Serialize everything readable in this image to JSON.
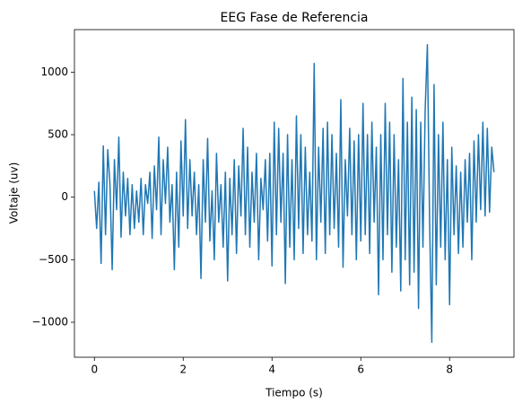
{
  "chart_data": {
    "type": "line",
    "title": "EEG Fase de Referencia",
    "x_label": "Tiempo (s)",
    "y_label": "Voltaje (uv)",
    "color": "#1f77b4",
    "x": [
      0,
      0.05,
      0.1,
      0.15,
      0.2,
      0.25,
      0.3,
      0.35,
      0.4,
      0.45,
      0.5,
      0.55,
      0.6,
      0.65,
      0.7,
      0.75,
      0.8,
      0.85,
      0.9,
      0.95,
      1,
      1.05,
      1.1,
      1.15,
      1.2,
      1.25,
      1.3,
      1.35,
      1.4,
      1.45,
      1.5,
      1.55,
      1.6,
      1.65,
      1.7,
      1.75,
      1.8,
      1.85,
      1.9,
      1.95,
      2,
      2.05,
      2.1,
      2.15,
      2.2,
      2.25,
      2.3,
      2.35,
      2.4,
      2.45,
      2.5,
      2.55,
      2.6,
      2.65,
      2.7,
      2.75,
      2.8,
      2.85,
      2.9,
      2.95,
      3,
      3.05,
      3.1,
      3.15,
      3.2,
      3.25,
      3.3,
      3.35,
      3.4,
      3.45,
      3.5,
      3.55,
      3.6,
      3.65,
      3.7,
      3.75,
      3.8,
      3.85,
      3.9,
      3.95,
      4,
      4.05,
      4.1,
      4.15,
      4.2,
      4.25,
      4.3,
      4.35,
      4.4,
      4.45,
      4.5,
      4.55,
      4.6,
      4.65,
      4.7,
      4.75,
      4.8,
      4.85,
      4.9,
      4.95,
      5,
      5.05,
      5.1,
      5.15,
      5.2,
      5.25,
      5.3,
      5.35,
      5.4,
      5.45,
      5.5,
      5.55,
      5.6,
      5.65,
      5.7,
      5.75,
      5.8,
      5.85,
      5.9,
      5.95,
      6,
      6.05,
      6.1,
      6.15,
      6.2,
      6.25,
      6.3,
      6.35,
      6.4,
      6.45,
      6.5,
      6.55,
      6.6,
      6.65,
      6.7,
      6.75,
      6.8,
      6.85,
      6.9,
      6.95,
      7,
      7.05,
      7.1,
      7.15,
      7.2,
      7.25,
      7.3,
      7.35,
      7.4,
      7.45,
      7.5,
      7.55,
      7.6,
      7.65,
      7.7,
      7.75,
      7.8,
      7.85,
      7.9,
      7.95,
      8,
      8.05,
      8.1,
      8.15,
      8.2,
      8.25,
      8.3,
      8.35,
      8.4,
      8.45,
      8.5,
      8.55,
      8.6,
      8.65,
      8.7,
      8.75,
      8.8,
      8.85,
      8.9,
      8.95,
      9
    ],
    "values": [
      50,
      -250,
      120,
      -530,
      410,
      -300,
      380,
      100,
      -580,
      300,
      -100,
      480,
      -320,
      200,
      -150,
      150,
      -300,
      100,
      -250,
      50,
      -200,
      150,
      -300,
      100,
      -50,
      200,
      -330,
      250,
      -100,
      480,
      -300,
      300,
      -50,
      400,
      -200,
      100,
      -580,
      200,
      -400,
      450,
      -150,
      620,
      -250,
      300,
      -150,
      200,
      -300,
      100,
      -650,
      300,
      -200,
      470,
      -350,
      50,
      -500,
      350,
      -200,
      100,
      -400,
      200,
      -670,
      150,
      -300,
      300,
      -450,
      250,
      -150,
      550,
      -300,
      400,
      -400,
      200,
      -200,
      350,
      -500,
      150,
      -100,
      300,
      -350,
      350,
      -550,
      600,
      -300,
      550,
      -200,
      350,
      -690,
      500,
      -400,
      300,
      -500,
      650,
      -250,
      500,
      -450,
      400,
      -300,
      200,
      -350,
      1070,
      -500,
      400,
      -200,
      550,
      -450,
      600,
      -300,
      500,
      -250,
      350,
      -400,
      780,
      -560,
      300,
      -150,
      550,
      -300,
      450,
      -500,
      500,
      -350,
      750,
      -300,
      500,
      -450,
      600,
      -200,
      400,
      -780,
      500,
      -500,
      750,
      -300,
      600,
      -600,
      500,
      -400,
      300,
      -750,
      950,
      -500,
      600,
      -700,
      800,
      -600,
      700,
      -890,
      600,
      -400,
      700,
      1220,
      -200,
      -1160,
      900,
      -700,
      500,
      -400,
      600,
      -500,
      300,
      -860,
      400,
      -300,
      250,
      -450,
      200,
      -400,
      300,
      -200,
      350,
      -500,
      450,
      -200,
      500,
      -100,
      600,
      -150,
      550,
      -120,
      400,
      200
    ],
    "xlim": [
      -0.45,
      9.45
    ],
    "ylim": [
      -1280,
      1340
    ],
    "xticks": [
      0,
      2,
      4,
      6,
      8
    ],
    "yticks": [
      {
        "value": -1000,
        "label": "−1000"
      },
      {
        "value": -500,
        "label": "−500"
      },
      0,
      500,
      1000
    ]
  }
}
